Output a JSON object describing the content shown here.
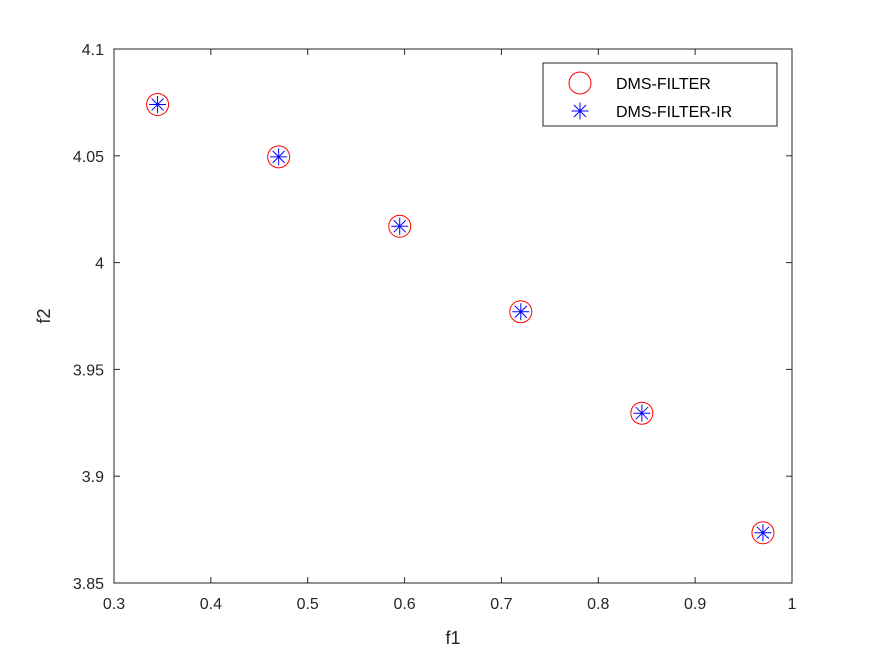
{
  "chart_data": {
    "type": "scatter",
    "title": "",
    "xlabel": "f1",
    "ylabel": "f2",
    "xlim": [
      0.3,
      1
    ],
    "ylim": [
      3.85,
      4.1
    ],
    "xticks": [
      0.3,
      0.4,
      0.5,
      0.6,
      0.7,
      0.8,
      0.9,
      1
    ],
    "xtick_labels": [
      "0.3",
      "0.4",
      "0.5",
      "0.6",
      "0.7",
      "0.8",
      "0.9",
      "1"
    ],
    "yticks": [
      3.85,
      3.9,
      3.95,
      4,
      4.05,
      4.1
    ],
    "ytick_labels": [
      "3.85",
      "3.9",
      "3.95",
      "4",
      "4.05",
      "4.1"
    ],
    "grid": false,
    "legend_position": "top-right",
    "series": [
      {
        "name": "DMS-FILTER",
        "marker": "circle",
        "color": "#ff0000",
        "x": [
          0.345,
          0.47,
          0.595,
          0.72,
          0.845,
          0.97
        ],
        "y": [
          4.074,
          4.0495,
          4.017,
          3.977,
          3.9295,
          3.8735
        ]
      },
      {
        "name": "DMS-FILTER-IR",
        "marker": "asterisk",
        "color": "#0000ff",
        "x": [
          0.345,
          0.47,
          0.595,
          0.72,
          0.845,
          0.97
        ],
        "y": [
          4.074,
          4.0495,
          4.017,
          3.977,
          3.9295,
          3.8735
        ]
      }
    ]
  }
}
